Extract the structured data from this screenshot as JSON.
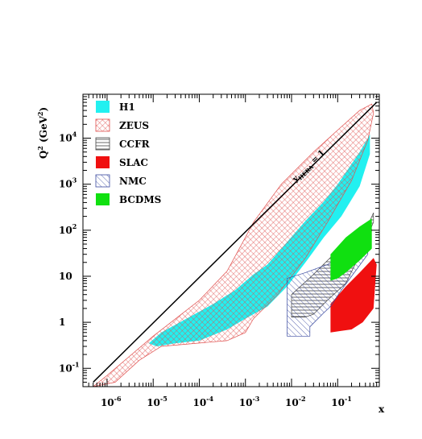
{
  "chart_data": {
    "type": "area",
    "xscale": "log",
    "yscale": "log",
    "xlim": [
      3e-07,
      0.8
    ],
    "ylim": [
      0.04,
      90000
    ],
    "xlabel": "x",
    "ylabel": "Q2 (GeV2)",
    "ylabel_parts": {
      "q": "Q",
      "q_exp": "2",
      "open": " (GeV",
      "unit_exp": "2",
      "close": ")"
    },
    "xticks": [
      {
        "value": 1e-06,
        "base": "10",
        "exp": "-6"
      },
      {
        "value": 1e-05,
        "base": "10",
        "exp": "-5"
      },
      {
        "value": 0.0001,
        "base": "10",
        "exp": "-4"
      },
      {
        "value": 0.001,
        "base": "10",
        "exp": "-3"
      },
      {
        "value": 0.01,
        "base": "10",
        "exp": "-2"
      },
      {
        "value": 0.1,
        "base": "10",
        "exp": "-1"
      }
    ],
    "yticks": [
      {
        "value": 0.1,
        "base": "10",
        "exp": "-1"
      },
      {
        "value": 1,
        "base": "1",
        "exp": ""
      },
      {
        "value": 10,
        "base": "10",
        "exp": ""
      },
      {
        "value": 100,
        "base": "10",
        "exp": "2"
      },
      {
        "value": 1000,
        "base": "10",
        "exp": "3"
      },
      {
        "value": 10000,
        "base": "10",
        "exp": "4"
      }
    ],
    "kinematic_limit": {
      "label": "y HERA = 1",
      "label_base": "y",
      "label_sub": "HERA",
      "label_rest": " = 1",
      "points": [
        [
          5e-07,
          0.05
        ],
        [
          0.7,
          60000
        ]
      ]
    },
    "legend_position": "top-left",
    "series": [
      {
        "name": "H1",
        "color": "#22f0f0",
        "pattern": "solid",
        "points": [
          [
            8e-06,
            0.35
          ],
          [
            1.5e-05,
            0.6
          ],
          [
            0.0002,
            2.5
          ],
          [
            0.0006,
            5
          ],
          [
            0.0015,
            11
          ],
          [
            0.003,
            18
          ],
          [
            0.006,
            40
          ],
          [
            0.02,
            160
          ],
          [
            0.05,
            420
          ],
          [
            0.1,
            1000
          ],
          [
            0.3,
            5000
          ],
          [
            0.5,
            12000
          ],
          [
            0.5,
            4500
          ],
          [
            0.3,
            900
          ],
          [
            0.12,
            200
          ],
          [
            0.05,
            70
          ],
          [
            0.02,
            20
          ],
          [
            0.008,
            6
          ],
          [
            0.003,
            2.2
          ],
          [
            0.001,
            1.2
          ],
          [
            0.0004,
            0.7
          ],
          [
            0.0001,
            0.4
          ],
          [
            3e-05,
            0.35
          ],
          [
            1.2e-05,
            0.3
          ]
        ]
      },
      {
        "name": "ZEUS",
        "color": "#e0504e",
        "pattern": "crosshatch",
        "points": [
          [
            5e-07,
            0.04
          ],
          [
            1e-06,
            0.07
          ],
          [
            1e-05,
            0.5
          ],
          [
            0.0001,
            3
          ],
          [
            0.0004,
            13
          ],
          [
            0.001,
            70
          ],
          [
            0.0015,
            150
          ],
          [
            0.006,
            1000
          ],
          [
            0.03,
            5000
          ],
          [
            0.1,
            15000
          ],
          [
            0.3,
            40000
          ],
          [
            0.55,
            55000
          ],
          [
            0.6,
            35000
          ],
          [
            0.45,
            9000
          ],
          [
            0.2,
            1200
          ],
          [
            0.06,
            150
          ],
          [
            0.02,
            25
          ],
          [
            0.005,
            4
          ],
          [
            0.0015,
            1.2
          ],
          [
            0.001,
            0.6
          ],
          [
            0.0004,
            0.4
          ],
          [
            1.5e-05,
            0.3
          ],
          [
            5e-06,
            0.15
          ],
          [
            1.5e-06,
            0.05
          ]
        ]
      },
      {
        "name": "CCFR",
        "color": "#444444",
        "pattern": "horizontal",
        "points": [
          [
            0.01,
            1.3
          ],
          [
            0.01,
            4
          ],
          [
            0.03,
            11
          ],
          [
            0.06,
            22
          ],
          [
            0.25,
            90
          ],
          [
            0.5,
            160
          ],
          [
            0.6,
            240
          ],
          [
            0.6,
            150
          ],
          [
            0.25,
            20
          ],
          [
            0.15,
            7
          ],
          [
            0.06,
            3
          ],
          [
            0.03,
            1.5
          ],
          [
            0.02,
            1.3
          ]
        ]
      },
      {
        "name": "SLAC",
        "color": "#f01010",
        "pattern": "solid",
        "points": [
          [
            0.07,
            0.6
          ],
          [
            0.07,
            2.5
          ],
          [
            0.15,
            6
          ],
          [
            0.3,
            12
          ],
          [
            0.6,
            25
          ],
          [
            0.7,
            18
          ],
          [
            0.6,
            2
          ],
          [
            0.35,
            1
          ],
          [
            0.2,
            0.7
          ],
          [
            0.12,
            0.65
          ]
        ]
      },
      {
        "name": "NMC",
        "color": "#3a4aa0",
        "pattern": "diagonal",
        "points": [
          [
            0.008,
            0.5
          ],
          [
            0.008,
            9
          ],
          [
            0.02,
            12
          ],
          [
            0.06,
            18
          ],
          [
            0.15,
            30
          ],
          [
            0.3,
            60
          ],
          [
            0.45,
            100
          ],
          [
            0.45,
            30
          ],
          [
            0.2,
            10
          ],
          [
            0.12,
            5
          ],
          [
            0.07,
            2.2
          ],
          [
            0.05,
            1.6
          ],
          [
            0.025,
            0.8
          ],
          [
            0.025,
            0.5
          ]
        ]
      },
      {
        "name": "BCDMS",
        "color": "#10e010",
        "pattern": "solid",
        "points": [
          [
            0.07,
            8
          ],
          [
            0.07,
            30
          ],
          [
            0.15,
            70
          ],
          [
            0.3,
            120
          ],
          [
            0.55,
            180
          ],
          [
            0.55,
            40
          ],
          [
            0.3,
            22
          ],
          [
            0.15,
            12
          ],
          [
            0.1,
            9
          ]
        ]
      }
    ]
  }
}
